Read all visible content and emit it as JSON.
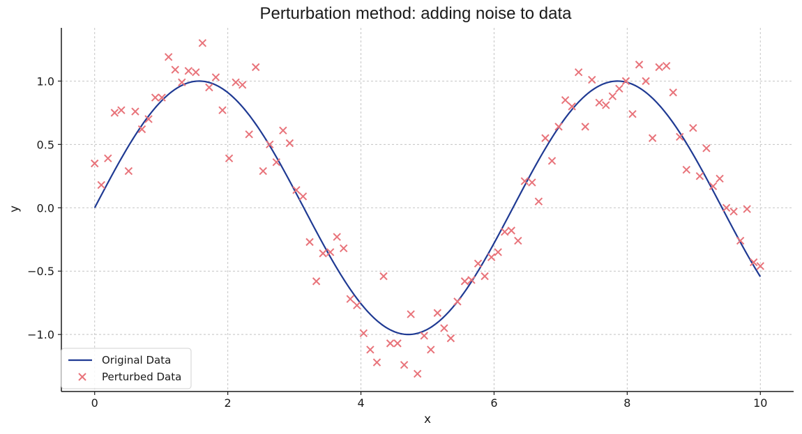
{
  "chart_data": {
    "type": "line",
    "title": "Perturbation method: adding noise to data",
    "xlabel": "x",
    "ylabel": "y",
    "xlim": [
      -0.5,
      10.5
    ],
    "ylim": [
      -1.45,
      1.42
    ],
    "xticks": [
      0,
      2,
      4,
      6,
      8,
      10
    ],
    "xtick_labels": [
      "0",
      "2",
      "4",
      "6",
      "8",
      "10"
    ],
    "yticks": [
      -1.0,
      -0.5,
      0.0,
      0.5,
      1.0
    ],
    "ytick_labels": [
      "−1.0",
      "−0.5",
      "0.0",
      "0.5",
      "1.0"
    ],
    "grid": true,
    "legend_position": "lower-left",
    "series": [
      {
        "name": "Original Data",
        "kind": "line",
        "color": "#1f3a93",
        "function": "sin(x)",
        "x_range": [
          0,
          10
        ]
      },
      {
        "name": "Perturbed Data",
        "kind": "scatter",
        "marker": "x",
        "color": "#e8737a",
        "points": [
          [
            0.0,
            0.35
          ],
          [
            0.1,
            0.18
          ],
          [
            0.2,
            0.39
          ],
          [
            0.3,
            0.75
          ],
          [
            0.4,
            0.77
          ],
          [
            0.51,
            0.29
          ],
          [
            0.61,
            0.76
          ],
          [
            0.71,
            0.62
          ],
          [
            0.81,
            0.7
          ],
          [
            0.91,
            0.87
          ],
          [
            1.01,
            0.87
          ],
          [
            1.11,
            1.19
          ],
          [
            1.21,
            1.09
          ],
          [
            1.31,
            0.99
          ],
          [
            1.41,
            1.08
          ],
          [
            1.52,
            1.07
          ],
          [
            1.62,
            1.3
          ],
          [
            1.72,
            0.95
          ],
          [
            1.82,
            1.03
          ],
          [
            1.92,
            0.77
          ],
          [
            2.02,
            0.39
          ],
          [
            2.12,
            0.99
          ],
          [
            2.22,
            0.97
          ],
          [
            2.32,
            0.58
          ],
          [
            2.42,
            1.11
          ],
          [
            2.53,
            0.29
          ],
          [
            2.63,
            0.5
          ],
          [
            2.73,
            0.36
          ],
          [
            2.83,
            0.61
          ],
          [
            2.93,
            0.51
          ],
          [
            3.03,
            0.14
          ],
          [
            3.13,
            0.09
          ],
          [
            3.23,
            -0.27
          ],
          [
            3.33,
            -0.58
          ],
          [
            3.43,
            -0.36
          ],
          [
            3.54,
            -0.35
          ],
          [
            3.64,
            -0.23
          ],
          [
            3.74,
            -0.32
          ],
          [
            3.84,
            -0.72
          ],
          [
            3.94,
            -0.77
          ],
          [
            4.04,
            -0.99
          ],
          [
            4.14,
            -1.12
          ],
          [
            4.24,
            -1.22
          ],
          [
            4.34,
            -0.54
          ],
          [
            4.44,
            -1.07
          ],
          [
            4.55,
            -1.07
          ],
          [
            4.65,
            -1.24
          ],
          [
            4.75,
            -0.84
          ],
          [
            4.85,
            -1.31
          ],
          [
            4.95,
            -1.01
          ],
          [
            5.05,
            -1.12
          ],
          [
            5.15,
            -0.83
          ],
          [
            5.25,
            -0.95
          ],
          [
            5.35,
            -1.03
          ],
          [
            5.45,
            -0.74
          ],
          [
            5.56,
            -0.58
          ],
          [
            5.66,
            -0.57
          ],
          [
            5.76,
            -0.44
          ],
          [
            5.86,
            -0.54
          ],
          [
            5.96,
            -0.39
          ],
          [
            6.06,
            -0.35
          ],
          [
            6.16,
            -0.19
          ],
          [
            6.26,
            -0.18
          ],
          [
            6.36,
            -0.26
          ],
          [
            6.46,
            0.21
          ],
          [
            6.57,
            0.2
          ],
          [
            6.67,
            0.05
          ],
          [
            6.77,
            0.55
          ],
          [
            6.87,
            0.37
          ],
          [
            6.97,
            0.64
          ],
          [
            7.07,
            0.85
          ],
          [
            7.17,
            0.8
          ],
          [
            7.27,
            1.07
          ],
          [
            7.37,
            0.64
          ],
          [
            7.47,
            1.01
          ],
          [
            7.58,
            0.83
          ],
          [
            7.68,
            0.81
          ],
          [
            7.78,
            0.88
          ],
          [
            7.88,
            0.94
          ],
          [
            7.98,
            1.0
          ],
          [
            8.08,
            0.74
          ],
          [
            8.18,
            1.13
          ],
          [
            8.28,
            1.0
          ],
          [
            8.38,
            0.55
          ],
          [
            8.48,
            1.11
          ],
          [
            8.59,
            1.12
          ],
          [
            8.69,
            0.91
          ],
          [
            8.79,
            0.56
          ],
          [
            8.89,
            0.3
          ],
          [
            8.99,
            0.63
          ],
          [
            9.09,
            0.25
          ],
          [
            9.19,
            0.47
          ],
          [
            9.29,
            0.17
          ],
          [
            9.39,
            0.23
          ],
          [
            9.49,
            0.0
          ],
          [
            9.6,
            -0.03
          ],
          [
            9.7,
            -0.26
          ],
          [
            9.8,
            -0.01
          ],
          [
            9.9,
            -0.43
          ],
          [
            10.0,
            -0.46
          ]
        ]
      }
    ]
  }
}
